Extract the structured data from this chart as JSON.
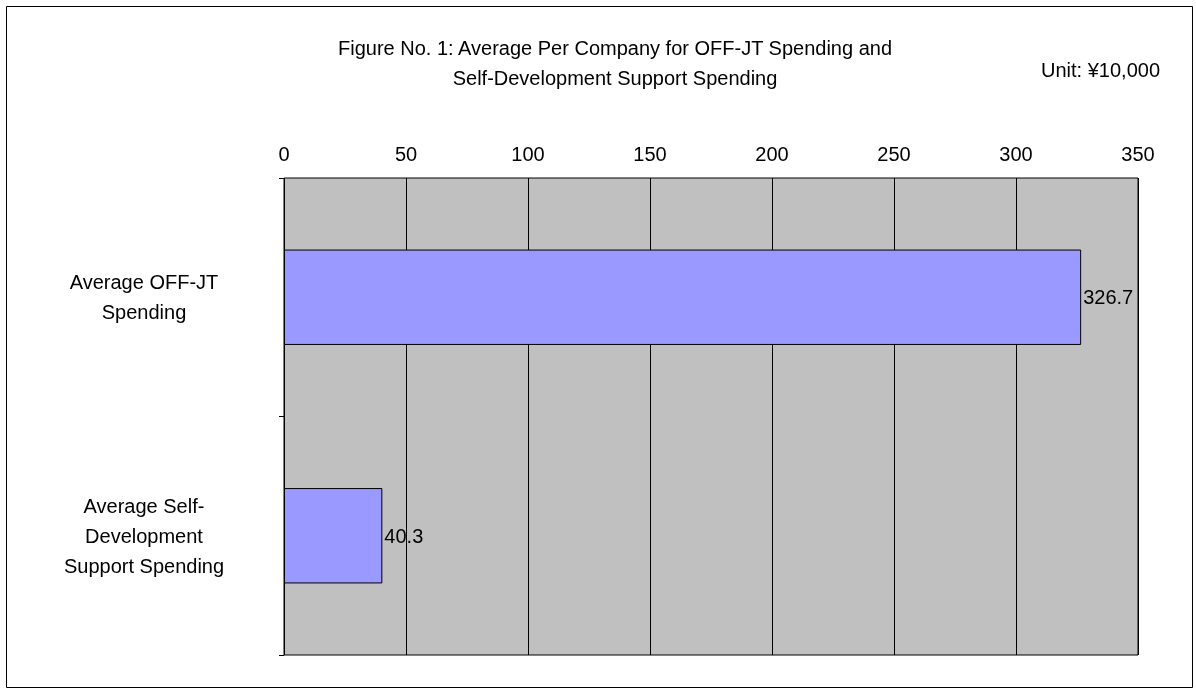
{
  "chart_data": {
    "type": "bar",
    "orientation": "horizontal",
    "title": "Figure No. 1: Average Per Company for OFF-JT Spending and\nSelf-Development Support Spending",
    "annotations": [
      "Unit: ¥10,000"
    ],
    "categories": [
      "Average OFF-JT\nSpending",
      "Average Self-\nDevelopment\nSupport Spending"
    ],
    "values": [
      326.7,
      40.3
    ],
    "color": "#9999ff",
    "xlim": [
      0,
      350
    ],
    "xticks": [
      0,
      50,
      100,
      150,
      200,
      250,
      300,
      350
    ],
    "grid": "x",
    "data_labels": true
  }
}
